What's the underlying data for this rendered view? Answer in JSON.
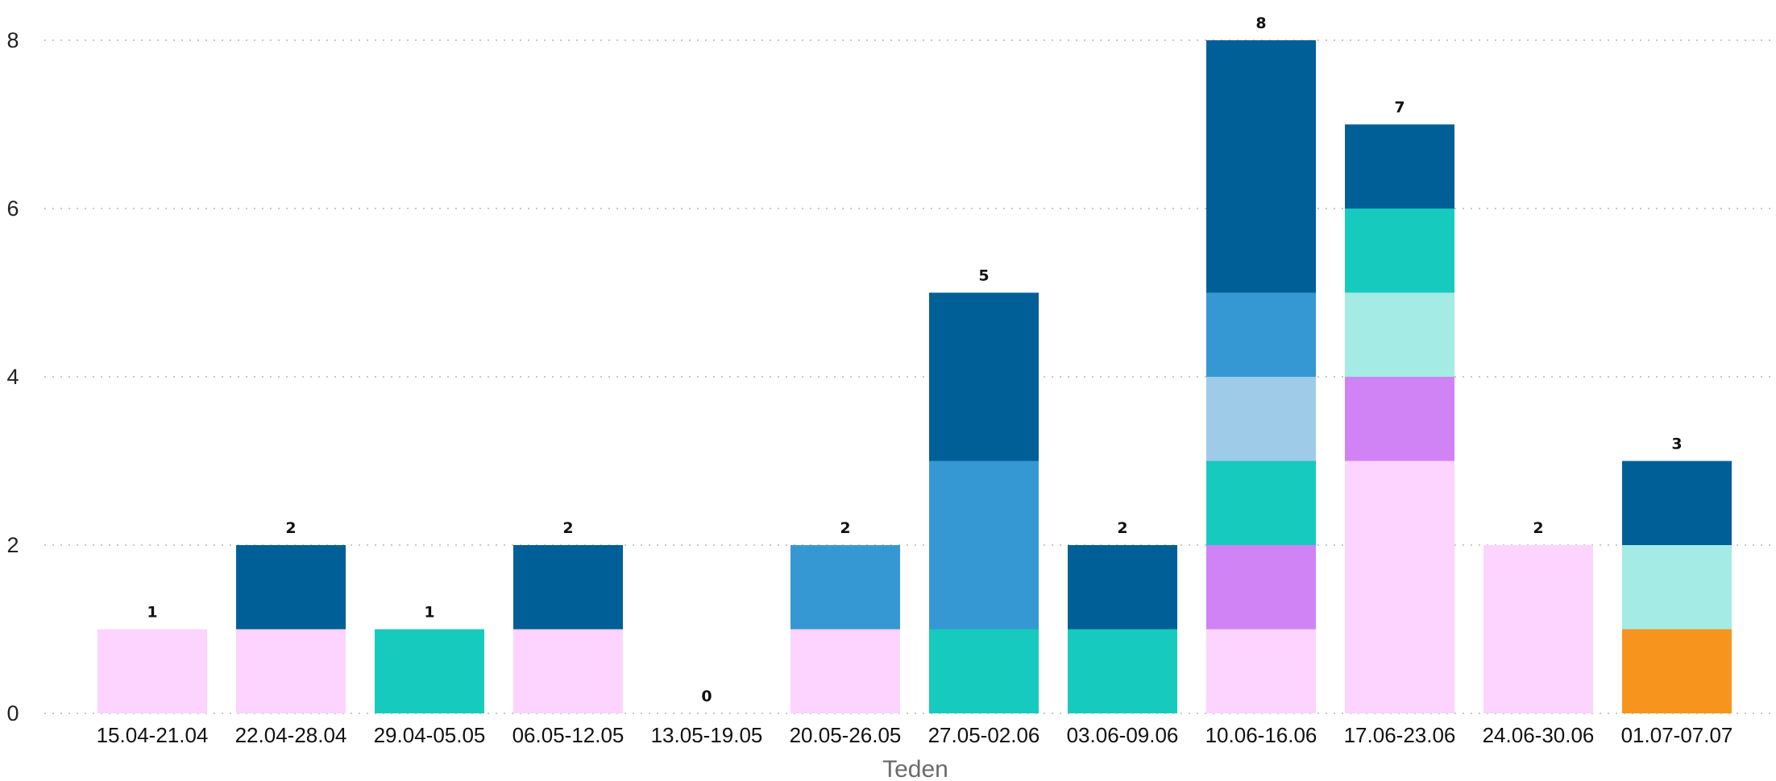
{
  "chart_data": {
    "type": "bar",
    "stacked": true,
    "title": "",
    "xlabel": "Teden",
    "ylabel": "",
    "ylim": [
      0,
      8
    ],
    "yticks": [
      0,
      2,
      4,
      6,
      8
    ],
    "grid": true,
    "legend": "none",
    "categories": [
      "15.04-21.04",
      "22.04-28.04",
      "29.04-05.05",
      "06.05-12.05",
      "13.05-19.05",
      "20.05-26.05",
      "27.05-02.06",
      "03.06-09.06",
      "10.06-16.06",
      "17.06-23.06",
      "24.06-30.06",
      "01.07-07.07"
    ],
    "totals": [
      1,
      2,
      1,
      2,
      0,
      2,
      5,
      2,
      8,
      7,
      2,
      3
    ],
    "series": [
      {
        "color": "#f7941d",
        "values": [
          0,
          0,
          0,
          0,
          0,
          0,
          0,
          0,
          0,
          0,
          0,
          1
        ]
      },
      {
        "color": "#fdd3ff",
        "values": [
          1,
          1,
          0,
          1,
          0,
          1,
          0,
          0,
          1,
          3,
          2,
          0
        ]
      },
      {
        "color": "#d083f5",
        "values": [
          0,
          0,
          0,
          0,
          0,
          0,
          0,
          0,
          1,
          1,
          0,
          0
        ]
      },
      {
        "color": "#a3ebe4",
        "values": [
          0,
          0,
          0,
          0,
          0,
          0,
          0,
          0,
          0,
          1,
          0,
          1
        ]
      },
      {
        "color": "#17cabe",
        "values": [
          0,
          0,
          1,
          0,
          0,
          0,
          1,
          1,
          1,
          1,
          0,
          0
        ]
      },
      {
        "color": "#9dcbe8",
        "values": [
          0,
          0,
          0,
          0,
          0,
          0,
          0,
          0,
          1,
          0,
          0,
          0
        ]
      },
      {
        "color": "#3698d3",
        "values": [
          0,
          0,
          0,
          0,
          0,
          1,
          2,
          0,
          1,
          0,
          0,
          0
        ]
      },
      {
        "color": "#005f96",
        "values": [
          0,
          1,
          0,
          1,
          0,
          0,
          2,
          1,
          3,
          1,
          0,
          1
        ]
      }
    ]
  }
}
